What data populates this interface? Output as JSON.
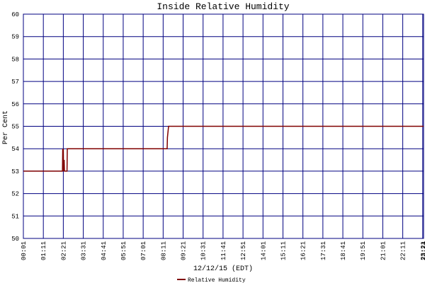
{
  "chart_data": {
    "type": "line",
    "title": "Inside Relative Humidity",
    "x_label": "12/12/15 (EDT)",
    "y_label": "Per Cent",
    "x": [
      "00:01",
      "02:18",
      "02:19",
      "02:20",
      "02:21",
      "02:22",
      "02:24",
      "02:25",
      "02:34",
      "02:35",
      "08:25",
      "08:26",
      "08:30",
      "23:24"
    ],
    "series": [
      {
        "name": "Relative Humidity",
        "color": "#800000",
        "values": [
          53,
          53,
          54,
          53.5,
          54,
          53,
          53.5,
          53,
          53,
          54,
          54,
          54.5,
          55,
          55
        ]
      }
    ],
    "xlim": [
      "00:01",
      "23:24"
    ],
    "xticks": [
      "00:01",
      "01:11",
      "02:21",
      "03:31",
      "04:41",
      "05:51",
      "07:01",
      "08:11",
      "09:21",
      "10:31",
      "11:41",
      "12:51",
      "14:01",
      "15:11",
      "16:21",
      "17:31",
      "18:41",
      "19:51",
      "21:01",
      "22:11",
      "23:21",
      "23:24"
    ],
    "ylim": [
      50,
      60
    ],
    "yticks": [
      50,
      51,
      52,
      53,
      54,
      55,
      56,
      57,
      58,
      59,
      60
    ],
    "grid": true,
    "grid_color": "#000080",
    "legend": "bottom"
  }
}
